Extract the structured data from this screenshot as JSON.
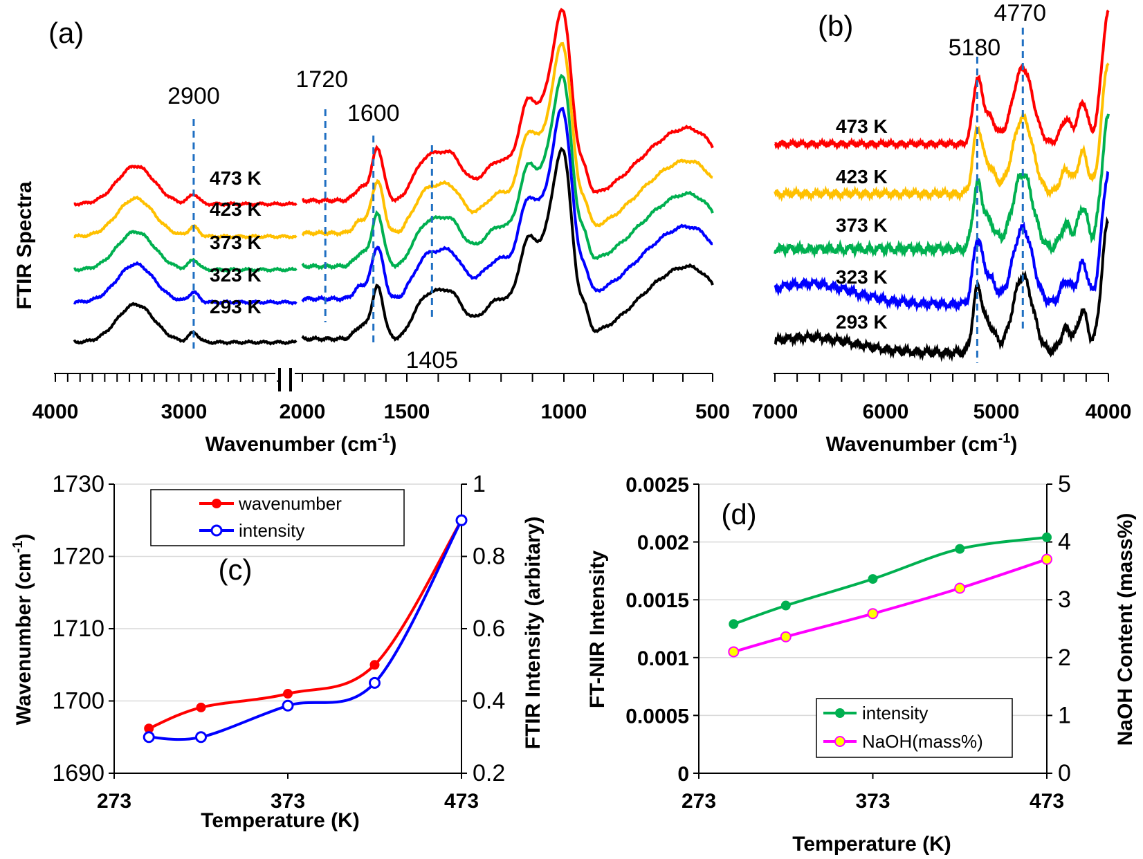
{
  "chart_data": [
    {
      "id": "a",
      "type": "line",
      "panel_label": "(a)",
      "ylabel": "FTIR Spectra",
      "xlabel": "Wavenumber (cm",
      "xlabel_sup": "-1",
      "xlabel_end": ")",
      "xticks": [
        "4000",
        "3000",
        "2000",
        "1500",
        "1000",
        "500"
      ],
      "peaks": [
        {
          "label": "2900",
          "x": 2900
        },
        {
          "label": "1720",
          "x": 1720
        },
        {
          "label": "1600",
          "x": 1600
        },
        {
          "label": "1405",
          "x": 1405
        }
      ],
      "series": [
        {
          "name": "473 K",
          "label": "473 K",
          "color": "#ff0000",
          "offset": 4
        },
        {
          "name": "423 K",
          "label": "423 K",
          "color": "#ffc000",
          "offset": 3
        },
        {
          "name": "373 K",
          "label": "373 K",
          "color": "#00b050",
          "offset": 2
        },
        {
          "name": "323 K",
          "label": "323 K",
          "color": "#0000ff",
          "offset": 1
        },
        {
          "name": "293 K",
          "label": "293 K",
          "color": "#000000",
          "offset": 0
        }
      ]
    },
    {
      "id": "b",
      "type": "line",
      "panel_label": "(b)",
      "xlabel": "Wavenumber (cm",
      "xlabel_sup": "-1",
      "xlabel_end": ")",
      "xticks": [
        "7000",
        "6000",
        "5000",
        "4000"
      ],
      "xlim": [
        7000,
        4000
      ],
      "peaks": [
        {
          "label": "5180",
          "x": 5180
        },
        {
          "label": "4770",
          "x": 4770
        }
      ],
      "series": [
        {
          "name": "473 K",
          "label": "473 K",
          "color": "#ff0000",
          "offset": 4
        },
        {
          "name": "423 K",
          "label": "423 K",
          "color": "#ffc000",
          "offset": 3
        },
        {
          "name": "373 K",
          "label": "373 K",
          "color": "#00b050",
          "offset": 2
        },
        {
          "name": "323 K",
          "label": "323 K",
          "color": "#0000ff",
          "offset": 1
        },
        {
          "name": "293 K",
          "label": "293 K",
          "color": "#000000",
          "offset": 0
        }
      ]
    },
    {
      "id": "c",
      "type": "line",
      "panel_label": "(c)",
      "xlabel": "Temperature (K)",
      "ylabel": "Wavenumber (cm",
      "ylabel_sup": "-1",
      "ylabel_end": ")",
      "y2label": "FTIR Intensity (arbitary)",
      "xlim": [
        273,
        473
      ],
      "xticks": [
        "273",
        "373",
        "473"
      ],
      "ylim": [
        1690,
        1730
      ],
      "yticks": [
        "1690",
        "1700",
        "1710",
        "1720",
        "1730"
      ],
      "y2lim": [
        0.2,
        1.0
      ],
      "y2ticks": [
        "0.2",
        "0.4",
        "0.6",
        "0.8",
        "1"
      ],
      "series": [
        {
          "name": "wavenumber",
          "color": "#ff0000",
          "marker": "filled",
          "axis": "left",
          "x": [
            293,
            323,
            373,
            423,
            473
          ],
          "y": [
            1696.2,
            1699.1,
            1701.0,
            1705.0,
            1725.0
          ]
        },
        {
          "name": "intensity",
          "color": "#0000ff",
          "marker": "open",
          "axis": "right",
          "x": [
            293,
            323,
            373,
            423,
            473
          ],
          "y": [
            0.3,
            0.3,
            0.387,
            0.45,
            0.9
          ]
        }
      ]
    },
    {
      "id": "d",
      "type": "line",
      "panel_label": "(d)",
      "xlabel": "Temperature (K)",
      "ylabel": "FT-NIR  Intensity",
      "y2label": "NaOH Content (mass%)",
      "xlim": [
        273,
        473
      ],
      "xticks": [
        "273",
        "373",
        "473"
      ],
      "ylim": [
        0,
        0.0025
      ],
      "yticks": [
        "0",
        "0.0005",
        "0.001",
        "0.0015",
        "0.002",
        "0.0025"
      ],
      "y2lim": [
        0,
        5
      ],
      "y2ticks": [
        "0",
        "1",
        "2",
        "3",
        "4",
        "5"
      ],
      "series": [
        {
          "name": "intensity",
          "color": "#00b050",
          "marker": "filled",
          "axis": "left",
          "x": [
            293,
            323,
            373,
            423,
            473
          ],
          "y": [
            0.00129,
            0.00145,
            0.00168,
            0.00194,
            0.00204
          ]
        },
        {
          "name": "NaOH(mass%)",
          "color": "#ff00ff",
          "marker": "yellow",
          "axis": "right",
          "x": [
            293,
            323,
            373,
            423,
            473
          ],
          "y": [
            2.1,
            2.36,
            2.76,
            3.2,
            3.7
          ]
        }
      ]
    }
  ]
}
